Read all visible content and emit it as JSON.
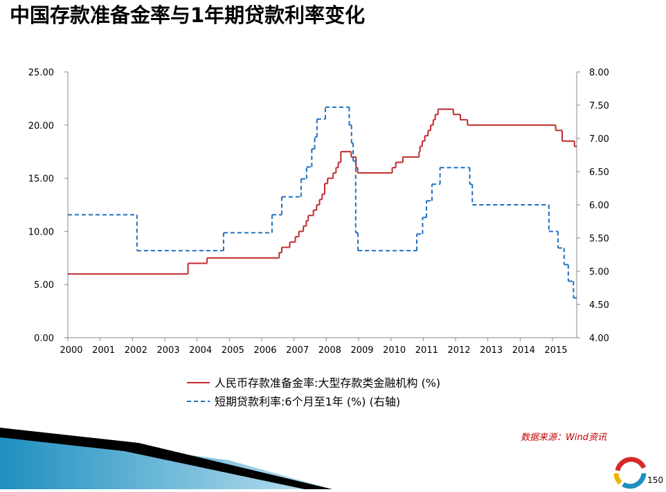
{
  "chart_data": {
    "type": "step-line",
    "title": "中国存款准备金率与1年期贷款利率变化",
    "source": "数据来源：Wind资讯",
    "page_number": "150",
    "xlim": [
      2000,
      2015.75
    ],
    "xticks": [
      2000,
      2001,
      2002,
      2003,
      2004,
      2005,
      2006,
      2007,
      2008,
      2009,
      2010,
      2011,
      2012,
      2013,
      2014,
      2015
    ],
    "ylim": [
      0,
      25
    ],
    "yticks": [
      {
        "value": 0,
        "label": "0.00"
      },
      {
        "value": 5,
        "label": "5.00"
      },
      {
        "value": 10,
        "label": "10.00"
      },
      {
        "value": 15,
        "label": "15.00"
      },
      {
        "value": 20,
        "label": "20.00"
      },
      {
        "value": 25,
        "label": "25.00"
      }
    ],
    "y2lim": [
      4,
      8
    ],
    "y2ticks": [
      {
        "value": 4,
        "label": "4.00"
      },
      {
        "value": 4.5,
        "label": "4.50"
      },
      {
        "value": 5,
        "label": "5.00"
      },
      {
        "value": 5.5,
        "label": "5.50"
      },
      {
        "value": 6,
        "label": "6.00"
      },
      {
        "value": 6.5,
        "label": "6.50"
      },
      {
        "value": 7,
        "label": "7.00"
      },
      {
        "value": 7.5,
        "label": "7.50"
      },
      {
        "value": 8,
        "label": "8.00"
      }
    ],
    "series": [
      {
        "name": "人民币存款准备金率:大型存款类金融机构 (%)",
        "color": "#c0282d",
        "dash": false,
        "x": [
          2000,
          2003.72,
          2004.31,
          2006.54,
          2006.62,
          2006.87,
          2007.04,
          2007.15,
          2007.29,
          2007.38,
          2007.44,
          2007.6,
          2007.7,
          2007.79,
          2007.87,
          2007.95,
          2008.04,
          2008.21,
          2008.3,
          2008.37,
          2008.45,
          2008.77,
          2008.92,
          2008.97,
          2010.04,
          2010.15,
          2010.37,
          2010.87,
          2010.9,
          2010.97,
          2011.05,
          2011.15,
          2011.23,
          2011.31,
          2011.37,
          2011.46,
          2011.93,
          2012.15,
          2012.37,
          2015.1,
          2015.3,
          2015.68,
          2015.75
        ],
        "values": [
          6,
          7,
          7.5,
          8,
          8.5,
          9,
          9.5,
          10,
          10.5,
          11,
          11.5,
          12,
          12.5,
          13,
          13.5,
          14.5,
          15,
          15.5,
          16,
          16.5,
          17.5,
          17,
          16,
          15.5,
          16,
          16.5,
          17,
          17.5,
          18,
          18.5,
          19,
          19.5,
          20,
          20.5,
          21,
          21.5,
          21,
          20.5,
          20,
          19.5,
          18.5,
          18,
          18
        ]
      },
      {
        "name": "短期贷款利率:6个月至1年 (%) (右轴)",
        "color": "#1f6fbf",
        "dash": true,
        "axis": "y2",
        "x": [
          2000,
          2002.14,
          2004.82,
          2006.32,
          2006.62,
          2007.22,
          2007.39,
          2007.55,
          2007.64,
          2007.71,
          2007.97,
          2008.71,
          2008.78,
          2008.83,
          2008.91,
          2008.98,
          2010.8,
          2010.98,
          2011.1,
          2011.27,
          2011.52,
          2012.44,
          2012.52,
          2014.89,
          2015.17,
          2015.36,
          2015.49,
          2015.65,
          2015.75
        ],
        "values": [
          5.85,
          5.31,
          5.58,
          5.85,
          6.12,
          6.39,
          6.57,
          6.84,
          7.02,
          7.29,
          7.47,
          7.2,
          6.93,
          6.66,
          5.58,
          5.31,
          5.56,
          5.81,
          6.06,
          6.31,
          6.56,
          6.31,
          6.0,
          5.6,
          5.35,
          5.1,
          4.85,
          4.6,
          4.6
        ]
      }
    ]
  }
}
